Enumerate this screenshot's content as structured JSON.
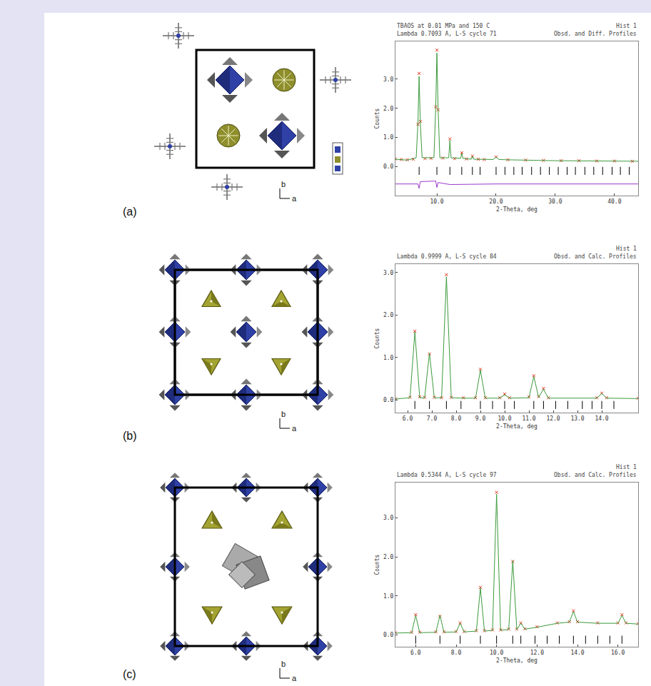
{
  "panels": [
    {
      "label": "(a)",
      "axes": {
        "x": "a",
        "y": "b"
      }
    },
    {
      "label": "(b)",
      "axes": {
        "x": "a",
        "y": "b"
      }
    },
    {
      "label": "(c)",
      "axes": {
        "x": "a",
        "y": "b"
      }
    }
  ],
  "chart_data": [
    {
      "type": "line",
      "title": "TBAOS at 0.01 MPa and 150 C",
      "subtitle": "Lambda 0.7093 A, L-S cycle 71",
      "annotations": [
        "Hist 1",
        "Obsd. and Diff. Profiles"
      ],
      "x_label": "2-Theta, deg",
      "y_label": "Counts",
      "xlim": [
        3,
        44
      ],
      "xticks": [
        {
          "value": 10,
          "label": "10.0"
        },
        {
          "value": 20,
          "label": "20.0"
        },
        {
          "value": 30,
          "label": "30.0"
        },
        {
          "value": 40,
          "label": "40.0"
        }
      ],
      "ylim": [
        -1,
        4.3
      ],
      "yticks": [
        {
          "value": 0,
          "label": "0.0"
        },
        {
          "value": 1,
          "label": "1.0"
        },
        {
          "value": 2,
          "label": "2.0"
        },
        {
          "value": 3,
          "label": "3.0"
        }
      ],
      "grid": false,
      "series": [
        {
          "type": "scatter",
          "marker": "cross",
          "color": "#e0301a",
          "x": [
            3,
            4,
            5,
            6,
            6.8,
            7.0,
            7.2,
            8,
            9,
            9.8,
            10.0,
            10.2,
            11,
            12.2,
            13,
            14.2,
            15,
            16.0,
            17,
            18,
            20.0,
            22,
            25,
            28,
            31,
            34,
            37,
            40,
            43
          ],
          "values": [
            0.26,
            0.24,
            0.23,
            0.25,
            1.45,
            3.2,
            1.55,
            0.27,
            0.28,
            2.05,
            4.0,
            1.95,
            0.29,
            0.95,
            0.27,
            0.47,
            0.26,
            0.36,
            0.25,
            0.24,
            0.33,
            0.23,
            0.22,
            0.21,
            0.2,
            0.2,
            0.19,
            0.19,
            0.18
          ]
        },
        {
          "type": "line",
          "line_style": "solid",
          "color": "#3c9a3c",
          "x": [
            3,
            5,
            6.5,
            6.8,
            7.0,
            7.2,
            7.5,
            9.5,
            9.8,
            10.0,
            10.2,
            10.5,
            12.0,
            12.2,
            12.4,
            14.0,
            14.2,
            14.4,
            15.8,
            16.0,
            16.2,
            19.5,
            20.0,
            20.5,
            22,
            30,
            44
          ],
          "values": [
            0.25,
            0.22,
            0.3,
            1.5,
            3.1,
            1.5,
            0.3,
            0.3,
            2.0,
            3.9,
            2.0,
            0.3,
            0.3,
            0.9,
            0.3,
            0.28,
            0.45,
            0.28,
            0.25,
            0.35,
            0.25,
            0.24,
            0.32,
            0.24,
            0.23,
            0.2,
            0.18
          ]
        },
        {
          "type": "line",
          "line_style": "solid",
          "color": "#9a38cc",
          "x": [
            3,
            6.8,
            7.0,
            7.2,
            9.8,
            10.0,
            10.2,
            12.2,
            20,
            44
          ],
          "values": [
            -0.6,
            -0.6,
            -0.75,
            -0.52,
            -0.5,
            -0.72,
            -0.55,
            -0.62,
            -0.6,
            -0.6
          ]
        },
        {
          "type": "scatter",
          "marker": "tick",
          "color": "#000000",
          "x": [
            7.0,
            10.0,
            12.2,
            14.2,
            16.0,
            17.3,
            20.0,
            21.5,
            23,
            24.4,
            26,
            27.5,
            29,
            30.5,
            32,
            33.4,
            35,
            36.5,
            38,
            39.6,
            41,
            42.5
          ],
          "values": [
            -0.15,
            -0.15,
            -0.15,
            -0.15,
            -0.15,
            -0.15,
            -0.15,
            -0.15,
            -0.15,
            -0.15,
            -0.15,
            -0.15,
            -0.15,
            -0.15,
            -0.15,
            -0.15,
            -0.15,
            -0.15,
            -0.15,
            -0.15,
            -0.15,
            -0.15
          ]
        }
      ]
    },
    {
      "type": "line",
      "subtitle": "Lambda 0.9999 A, L-S cycle 84",
      "annotations": [
        "Hist 1",
        "Obsd. and Calc. Profiles"
      ],
      "x_label": "2-Theta, deg",
      "y_label": "Counts",
      "xlim": [
        5.5,
        15.5
      ],
      "xticks": [
        {
          "value": 6,
          "label": "6.0"
        },
        {
          "value": 7,
          "label": "7.0"
        },
        {
          "value": 8,
          "label": "8.0"
        },
        {
          "value": 9,
          "label": "9.0"
        },
        {
          "value": 10,
          "label": "10.0"
        },
        {
          "value": 11,
          "label": "11.0"
        },
        {
          "value": 12,
          "label": "12.0"
        },
        {
          "value": 13,
          "label": "13.0"
        },
        {
          "value": 14,
          "label": "14.0"
        }
      ],
      "ylim": [
        -0.3,
        3.2
      ],
      "yticks": [
        {
          "value": 0,
          "label": "0.0"
        },
        {
          "value": 1,
          "label": "1.0"
        },
        {
          "value": 2,
          "label": "2.0"
        },
        {
          "value": 3,
          "label": "3.0"
        }
      ],
      "grid": false,
      "series": [
        {
          "type": "scatter",
          "marker": "cross",
          "color": "#e0301a",
          "x": [
            5.5,
            6.1,
            6.3,
            6.5,
            6.7,
            6.9,
            7.1,
            7.4,
            7.6,
            7.8,
            8.3,
            8.8,
            9.0,
            9.2,
            9.8,
            10.0,
            10.2,
            11.0,
            11.2,
            11.4,
            11.6,
            11.8,
            13.8,
            14.0,
            14.2,
            15.5
          ],
          "values": [
            0.03,
            0.06,
            1.62,
            0.07,
            0.06,
            1.08,
            0.06,
            0.05,
            2.95,
            0.06,
            0.05,
            0.05,
            0.72,
            0.05,
            0.05,
            0.14,
            0.05,
            0.07,
            0.57,
            0.08,
            0.27,
            0.05,
            0.05,
            0.16,
            0.05,
            0.04
          ]
        },
        {
          "type": "line",
          "line_style": "solid",
          "color": "#3c9a3c",
          "x": [
            5.5,
            6.1,
            6.3,
            6.5,
            6.7,
            6.9,
            7.1,
            7.4,
            7.6,
            7.8,
            8.3,
            8.8,
            9.0,
            9.2,
            9.8,
            10.0,
            10.2,
            11.0,
            11.2,
            11.4,
            11.6,
            11.8,
            13.8,
            14.0,
            14.2,
            15.5
          ],
          "values": [
            0.02,
            0.05,
            1.6,
            0.05,
            0.05,
            1.1,
            0.05,
            0.05,
            2.9,
            0.05,
            0.04,
            0.04,
            0.7,
            0.04,
            0.04,
            0.12,
            0.04,
            0.05,
            0.55,
            0.06,
            0.25,
            0.04,
            0.04,
            0.15,
            0.04,
            0.03
          ]
        },
        {
          "type": "scatter",
          "marker": "tick",
          "color": "#000000",
          "x": [
            6.3,
            6.9,
            7.6,
            8.2,
            9.0,
            9.5,
            10.0,
            10.4,
            11.2,
            11.6,
            12.1,
            12.6,
            13.2,
            13.6,
            14.0,
            14.5
          ],
          "values": [
            -0.12,
            -0.12,
            -0.12,
            -0.12,
            -0.12,
            -0.12,
            -0.12,
            -0.12,
            -0.12,
            -0.12,
            -0.12,
            -0.12,
            -0.12,
            -0.12,
            -0.12,
            -0.12
          ]
        }
      ]
    },
    {
      "type": "line",
      "subtitle": "Lambda 0.5344 A, L-S cycle 97",
      "annotations": [
        "Hist 1",
        "Obsd. and Calc. Profiles"
      ],
      "x_label": "2-Theta, deg",
      "y_label": "Counts",
      "xlim": [
        5,
        17
      ],
      "xticks": [
        {
          "value": 6,
          "label": "6.0"
        },
        {
          "value": 8,
          "label": "8.0"
        },
        {
          "value": 10,
          "label": "10.0"
        },
        {
          "value": 12,
          "label": "12.0"
        },
        {
          "value": 14,
          "label": "14.0"
        },
        {
          "value": 16,
          "label": "16.0"
        }
      ],
      "ylim": [
        -0.3,
        3.9
      ],
      "yticks": [
        {
          "value": 0,
          "label": "0.0"
        },
        {
          "value": 1,
          "label": "1.0"
        },
        {
          "value": 2,
          "label": "2.0"
        },
        {
          "value": 3,
          "label": "3.0"
        }
      ],
      "grid": false,
      "series": [
        {
          "type": "scatter",
          "marker": "cross",
          "color": "#e0301a",
          "x": [
            5,
            5.8,
            6.0,
            6.2,
            7.0,
            7.2,
            7.4,
            8.0,
            8.2,
            8.4,
            9.0,
            9.2,
            9.4,
            9.8,
            10.0,
            10.2,
            10.6,
            10.8,
            11.0,
            11.2,
            11.4,
            12,
            13,
            13.6,
            13.8,
            14.0,
            15,
            16.0,
            16.2,
            16.4,
            17
          ],
          "values": [
            0.06,
            0.07,
            0.52,
            0.07,
            0.08,
            0.48,
            0.08,
            0.09,
            0.31,
            0.09,
            0.11,
            1.22,
            0.11,
            0.13,
            3.65,
            0.13,
            0.15,
            1.88,
            0.15,
            0.31,
            0.16,
            0.21,
            0.31,
            0.34,
            0.62,
            0.34,
            0.31,
            0.31,
            0.52,
            0.31,
            0.29
          ]
        },
        {
          "type": "line",
          "line_style": "solid",
          "color": "#3c9a3c",
          "x": [
            5,
            5.8,
            6.0,
            6.2,
            7.0,
            7.2,
            7.4,
            8.0,
            8.2,
            8.4,
            9.0,
            9.2,
            9.4,
            9.8,
            10.0,
            10.2,
            10.6,
            10.8,
            11.0,
            11.2,
            11.4,
            12,
            13,
            13.6,
            13.8,
            14.0,
            15,
            16.0,
            16.2,
            16.4,
            17
          ],
          "values": [
            0.05,
            0.06,
            0.5,
            0.06,
            0.07,
            0.5,
            0.07,
            0.08,
            0.3,
            0.08,
            0.1,
            1.2,
            0.1,
            0.12,
            3.6,
            0.12,
            0.14,
            1.9,
            0.14,
            0.3,
            0.15,
            0.2,
            0.3,
            0.33,
            0.6,
            0.33,
            0.3,
            0.3,
            0.5,
            0.3,
            0.28
          ]
        },
        {
          "type": "scatter",
          "marker": "tick",
          "color": "#000000",
          "x": [
            6.0,
            7.2,
            8.2,
            9.2,
            10.0,
            10.8,
            11.2,
            11.9,
            12.5,
            13.1,
            13.8,
            14.4,
            15.0,
            15.6,
            16.2
          ],
          "values": [
            -0.12,
            -0.12,
            -0.12,
            -0.12,
            -0.12,
            -0.12,
            -0.12,
            -0.12,
            -0.12,
            -0.12,
            -0.12,
            -0.12,
            -0.12,
            -0.12,
            -0.12
          ]
        }
      ]
    }
  ]
}
